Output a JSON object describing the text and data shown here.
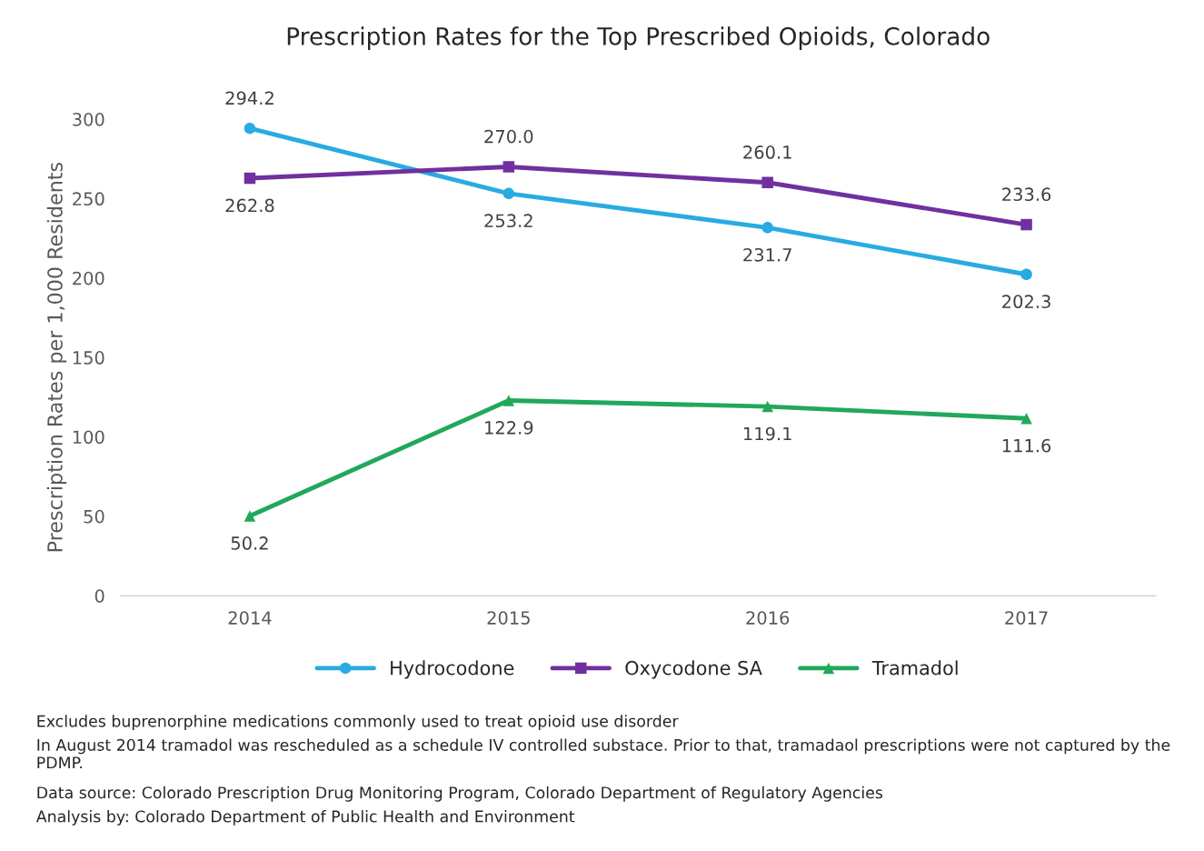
{
  "chart_data": {
    "type": "line",
    "title": "Prescription Rates for the Top Prescribed Opioids, Colorado",
    "ylabel": "Prescription Rates per 1,000 Residents",
    "categories": [
      "2014",
      "2015",
      "2016",
      "2017"
    ],
    "series": [
      {
        "name": "Hydrocodone",
        "color": "#29abe2",
        "marker": "circle",
        "values": [
          294.2,
          253.2,
          231.7,
          202.3
        ],
        "value_labels": [
          "294.2",
          "253.2",
          "231.7",
          "202.3"
        ]
      },
      {
        "name": "Oxycodone SA",
        "color": "#7030a0",
        "marker": "square",
        "values": [
          262.8,
          270.0,
          260.1,
          233.6
        ],
        "value_labels": [
          "262.8",
          "270.0",
          "260.1",
          "233.6"
        ]
      },
      {
        "name": "Tramadol",
        "color": "#21a85b",
        "marker": "triangle",
        "values": [
          50.2,
          122.9,
          119.1,
          111.6
        ],
        "value_labels": [
          "50.2",
          "122.9",
          "119.1",
          "111.6"
        ]
      }
    ],
    "ylim": [
      0,
      300
    ],
    "yticks": [
      0,
      50,
      100,
      150,
      200,
      250,
      300
    ],
    "grid": false,
    "legend": "bottom",
    "line_style": "solid",
    "annotations": [
      "Excludes buprenorphine medications commonly used to treat opioid use disorder",
      "In August 2014 tramadol was rescheduled as a schedule IV controlled substace. Prior to that, tramadaol prescriptions were not captured by the PDMP.",
      "Data source: Colorado Prescription Drug Monitoring Program, Colorado Department of Regulatory Agencies",
      "Analysis by: Colorado Department of Public Health and Environment"
    ]
  }
}
